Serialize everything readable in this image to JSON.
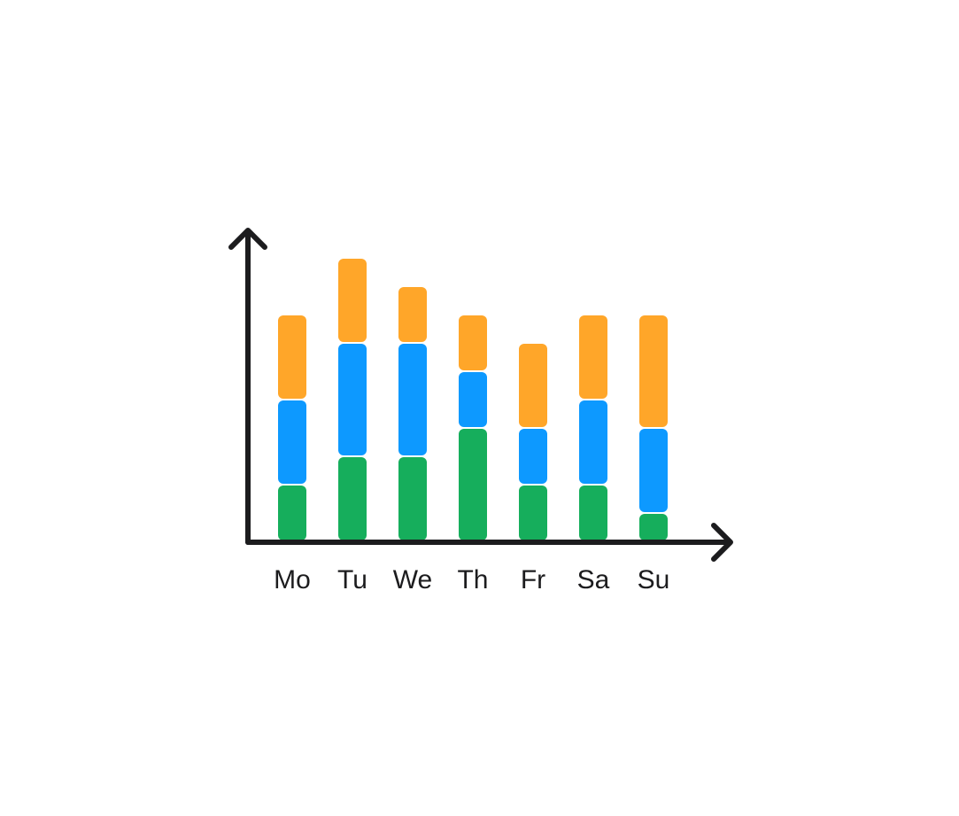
{
  "chart_data": {
    "type": "bar",
    "stacked": true,
    "title": "",
    "xlabel": "",
    "ylabel": "",
    "categories": [
      "Mo",
      "Tu",
      "We",
      "Th",
      "Fr",
      "Sa",
      "Su"
    ],
    "series": [
      {
        "values": [
          2,
          3,
          3,
          4,
          2,
          2,
          1
        ],
        "color": "#16ae5c"
      },
      {
        "values": [
          3,
          4,
          4,
          2,
          2,
          3,
          3
        ],
        "color": "#0d99ff"
      },
      {
        "values": [
          3,
          3,
          2,
          2,
          3,
          3,
          4
        ],
        "color": "#ffa629"
      }
    ],
    "ylim": [
      0,
      11
    ],
    "grid": false,
    "legend": "none",
    "y_ticks_shown": false,
    "axis_arrows": true,
    "axis_color": "#1c1c1e"
  }
}
